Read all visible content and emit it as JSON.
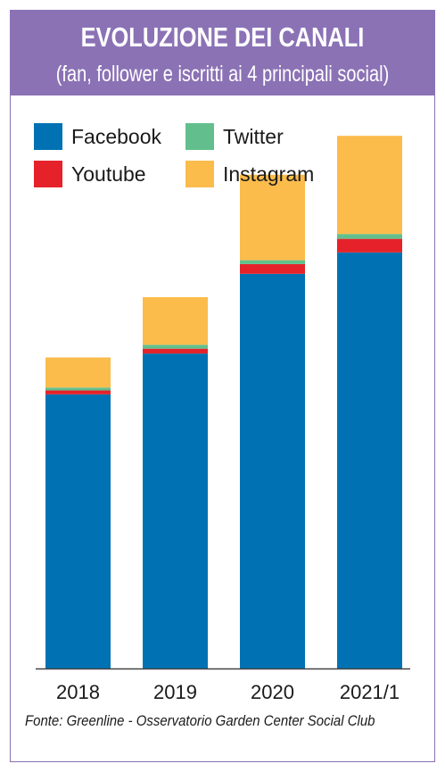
{
  "header": {
    "title": "EVOLUZIONE DEI CANALI",
    "subtitle": "(fan, follower e iscritti ai 4 principali social)"
  },
  "colors": {
    "header_bg": "#8b72b5",
    "Facebook": "#0072b4",
    "Twitter": "#62bf8d",
    "Youtube": "#e52229",
    "Instagram": "#fbbc4c"
  },
  "chart_data": {
    "type": "bar",
    "stacked": true,
    "categories": [
      "2018",
      "2019",
      "2020",
      "2021/1"
    ],
    "series": [
      {
        "name": "Facebook",
        "values": [
          282,
          324,
          406,
          428
        ]
      },
      {
        "name": "Youtube",
        "values": [
          4,
          5,
          10,
          14
        ]
      },
      {
        "name": "Twitter",
        "values": [
          3,
          4,
          4,
          5
        ]
      },
      {
        "name": "Instagram",
        "values": [
          31,
          49,
          88,
          101
        ]
      }
    ],
    "legend": {
      "placement": "top-left",
      "order": [
        "Facebook",
        "Twitter",
        "Youtube",
        "Instagram"
      ]
    },
    "ylim": [
      0,
      550
    ],
    "grid": false,
    "y_axis_visible": false
  },
  "footer": {
    "source": "Fonte: Greenline - Osservatorio Garden Center Social Club"
  }
}
